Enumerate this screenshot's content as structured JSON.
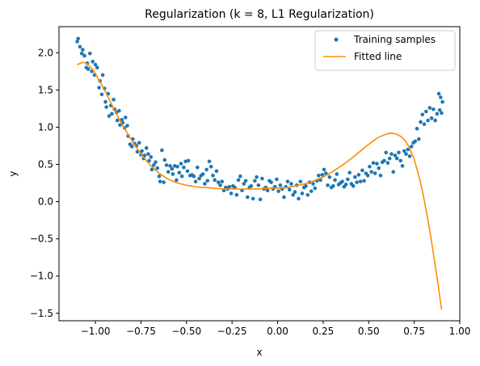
{
  "chart_data": {
    "type": "scatter",
    "title": "Regularization (k = 8, L1 Regularization)",
    "xlabel": "x",
    "ylabel": "y",
    "xlim": [
      -1.2,
      1.0
    ],
    "ylim": [
      -1.6,
      2.35
    ],
    "x_ticks": [
      -1.0,
      -0.75,
      -0.5,
      -0.25,
      0.0,
      0.25,
      0.5,
      0.75,
      1.0
    ],
    "x_tick_labels": [
      "−1.00",
      "−0.75",
      "−0.50",
      "−0.25",
      "0.00",
      "0.25",
      "0.50",
      "0.75",
      "1.00"
    ],
    "y_ticks": [
      -1.5,
      -1.0,
      -0.5,
      0.0,
      0.5,
      1.0,
      1.5,
      2.0
    ],
    "y_tick_labels": [
      "−1.5",
      "−1.0",
      "−0.5",
      "0.0",
      "0.5",
      "1.0",
      "1.5",
      "2.0"
    ],
    "grid": false,
    "legend": {
      "placement": "upper-right",
      "entries": [
        "Training samples",
        "Fitted line"
      ]
    },
    "colors": {
      "scatter": "#1f77b4",
      "line": "#ff8c00"
    },
    "series": [
      {
        "name": "Training samples",
        "kind": "scatter",
        "points": [
          [
            -1.1,
            2.15
          ],
          [
            -1.095,
            2.19
          ],
          [
            -1.085,
            2.08
          ],
          [
            -1.075,
            1.99
          ],
          [
            -1.07,
            2.04
          ],
          [
            -1.06,
            1.96
          ],
          [
            -1.05,
            1.8
          ],
          [
            -1.045,
            1.86
          ],
          [
            -1.04,
            1.78
          ],
          [
            -1.03,
            1.99
          ],
          [
            -1.02,
            1.75
          ],
          [
            -1.015,
            1.88
          ],
          [
            -1.005,
            1.7
          ],
          [
            -1.0,
            1.84
          ],
          [
            -0.99,
            1.8
          ],
          [
            -0.98,
            1.53
          ],
          [
            -0.975,
            1.62
          ],
          [
            -0.965,
            1.44
          ],
          [
            -0.96,
            1.7
          ],
          [
            -0.95,
            1.52
          ],
          [
            -0.945,
            1.34
          ],
          [
            -0.94,
            1.27
          ],
          [
            -0.93,
            1.45
          ],
          [
            -0.925,
            1.15
          ],
          [
            -0.915,
            1.29
          ],
          [
            -0.91,
            1.18
          ],
          [
            -0.9,
            1.37
          ],
          [
            -0.895,
            1.24
          ],
          [
            -0.885,
            1.2
          ],
          [
            -0.88,
            1.09
          ],
          [
            -0.87,
            1.22
          ],
          [
            -0.865,
            1.03
          ],
          [
            -0.855,
            1.1
          ],
          [
            -0.85,
            1.06
          ],
          [
            -0.84,
            0.99
          ],
          [
            -0.835,
            1.13
          ],
          [
            -0.825,
            1.02
          ],
          [
            -0.82,
            0.88
          ],
          [
            -0.81,
            0.77
          ],
          [
            -0.8,
            0.74
          ],
          [
            -0.795,
            0.84
          ],
          [
            -0.785,
            0.78
          ],
          [
            -0.775,
            0.75
          ],
          [
            -0.77,
            0.67
          ],
          [
            -0.76,
            0.79
          ],
          [
            -0.75,
            0.63
          ],
          [
            -0.745,
            0.68
          ],
          [
            -0.735,
            0.58
          ],
          [
            -0.73,
            0.62
          ],
          [
            -0.72,
            0.72
          ],
          [
            -0.71,
            0.64
          ],
          [
            -0.705,
            0.55
          ],
          [
            -0.695,
            0.6
          ],
          [
            -0.69,
            0.43
          ],
          [
            -0.68,
            0.49
          ],
          [
            -0.67,
            0.53
          ],
          [
            -0.66,
            0.45
          ],
          [
            -0.65,
            0.34
          ],
          [
            -0.645,
            0.27
          ],
          [
            -0.635,
            0.69
          ],
          [
            -0.625,
            0.26
          ],
          [
            -0.62,
            0.56
          ],
          [
            -0.61,
            0.49
          ],
          [
            -0.6,
            0.4
          ],
          [
            -0.59,
            0.48
          ],
          [
            -0.58,
            0.44
          ],
          [
            -0.575,
            0.37
          ],
          [
            -0.565,
            0.48
          ],
          [
            -0.555,
            0.29
          ],
          [
            -0.55,
            0.47
          ],
          [
            -0.54,
            0.39
          ],
          [
            -0.53,
            0.51
          ],
          [
            -0.525,
            0.34
          ],
          [
            -0.515,
            0.46
          ],
          [
            -0.505,
            0.54
          ],
          [
            -0.495,
            0.41
          ],
          [
            -0.49,
            0.55
          ],
          [
            -0.48,
            0.35
          ],
          [
            -0.47,
            0.36
          ],
          [
            -0.46,
            0.34
          ],
          [
            -0.45,
            0.27
          ],
          [
            -0.44,
            0.46
          ],
          [
            -0.43,
            0.31
          ],
          [
            -0.42,
            0.35
          ],
          [
            -0.41,
            0.37
          ],
          [
            -0.4,
            0.24
          ],
          [
            -0.39,
            0.43
          ],
          [
            -0.385,
            0.28
          ],
          [
            -0.375,
            0.54
          ],
          [
            -0.365,
            0.47
          ],
          [
            -0.355,
            0.35
          ],
          [
            -0.345,
            0.29
          ],
          [
            -0.335,
            0.41
          ],
          [
            -0.325,
            0.26
          ],
          [
            -0.315,
            0.22
          ],
          [
            -0.305,
            0.27
          ],
          [
            -0.295,
            0.15
          ],
          [
            -0.285,
            0.19
          ],
          [
            -0.275,
            0.17
          ],
          [
            -0.265,
            0.2
          ],
          [
            -0.255,
            0.11
          ],
          [
            -0.245,
            0.21
          ],
          [
            -0.235,
            0.19
          ],
          [
            -0.225,
            0.09
          ],
          [
            -0.215,
            0.29
          ],
          [
            -0.205,
            0.34
          ],
          [
            -0.195,
            0.15
          ],
          [
            -0.185,
            0.24
          ],
          [
            -0.175,
            0.28
          ],
          [
            -0.165,
            0.06
          ],
          [
            -0.155,
            0.19
          ],
          [
            -0.145,
            0.21
          ],
          [
            -0.135,
            0.04
          ],
          [
            -0.125,
            0.28
          ],
          [
            -0.115,
            0.33
          ],
          [
            -0.105,
            0.22
          ],
          [
            -0.095,
            0.03
          ],
          [
            -0.085,
            0.31
          ],
          [
            -0.075,
            0.17
          ],
          [
            -0.065,
            0.19
          ],
          [
            -0.055,
            0.15
          ],
          [
            -0.045,
            0.28
          ],
          [
            -0.035,
            0.26
          ],
          [
            -0.025,
            0.17
          ],
          [
            -0.015,
            0.2
          ],
          [
            -0.005,
            0.3
          ],
          [
            0.005,
            0.14
          ],
          [
            0.015,
            0.22
          ],
          [
            0.025,
            0.17
          ],
          [
            0.035,
            0.06
          ],
          [
            0.045,
            0.2
          ],
          [
            0.055,
            0.27
          ],
          [
            0.065,
            0.16
          ],
          [
            0.075,
            0.24
          ],
          [
            0.085,
            0.09
          ],
          [
            0.095,
            0.13
          ],
          [
            0.105,
            0.22
          ],
          [
            0.115,
            0.04
          ],
          [
            0.125,
            0.27
          ],
          [
            0.135,
            0.11
          ],
          [
            0.145,
            0.19
          ],
          [
            0.155,
            0.21
          ],
          [
            0.165,
            0.09
          ],
          [
            0.175,
            0.26
          ],
          [
            0.185,
            0.14
          ],
          [
            0.195,
            0.24
          ],
          [
            0.205,
            0.18
          ],
          [
            0.215,
            0.28
          ],
          [
            0.225,
            0.35
          ],
          [
            0.235,
            0.29
          ],
          [
            0.245,
            0.36
          ],
          [
            0.255,
            0.43
          ],
          [
            0.265,
            0.38
          ],
          [
            0.275,
            0.22
          ],
          [
            0.285,
            0.33
          ],
          [
            0.295,
            0.19
          ],
          [
            0.305,
            0.21
          ],
          [
            0.315,
            0.29
          ],
          [
            0.325,
            0.37
          ],
          [
            0.335,
            0.23
          ],
          [
            0.345,
            0.25
          ],
          [
            0.355,
            0.27
          ],
          [
            0.365,
            0.2
          ],
          [
            0.375,
            0.23
          ],
          [
            0.385,
            0.3
          ],
          [
            0.395,
            0.39
          ],
          [
            0.405,
            0.24
          ],
          [
            0.415,
            0.21
          ],
          [
            0.425,
            0.33
          ],
          [
            0.435,
            0.26
          ],
          [
            0.445,
            0.36
          ],
          [
            0.455,
            0.27
          ],
          [
            0.465,
            0.42
          ],
          [
            0.475,
            0.28
          ],
          [
            0.485,
            0.38
          ],
          [
            0.495,
            0.35
          ],
          [
            0.505,
            0.47
          ],
          [
            0.515,
            0.4
          ],
          [
            0.525,
            0.52
          ],
          [
            0.535,
            0.38
          ],
          [
            0.545,
            0.51
          ],
          [
            0.555,
            0.45
          ],
          [
            0.565,
            0.35
          ],
          [
            0.575,
            0.53
          ],
          [
            0.585,
            0.55
          ],
          [
            0.595,
            0.66
          ],
          [
            0.605,
            0.52
          ],
          [
            0.615,
            0.58
          ],
          [
            0.625,
            0.64
          ],
          [
            0.635,
            0.4
          ],
          [
            0.645,
            0.62
          ],
          [
            0.655,
            0.58
          ],
          [
            0.665,
            0.66
          ],
          [
            0.675,
            0.55
          ],
          [
            0.685,
            0.48
          ],
          [
            0.695,
            0.68
          ],
          [
            0.705,
            0.64
          ],
          [
            0.715,
            0.7
          ],
          [
            0.725,
            0.61
          ],
          [
            0.735,
            0.74
          ],
          [
            0.745,
            0.79
          ],
          [
            0.755,
            0.81
          ],
          [
            0.765,
            0.98
          ],
          [
            0.775,
            0.84
          ],
          [
            0.785,
            1.07
          ],
          [
            0.795,
            1.17
          ],
          [
            0.805,
            1.04
          ],
          [
            0.815,
            1.21
          ],
          [
            0.825,
            1.09
          ],
          [
            0.835,
            1.26
          ],
          [
            0.845,
            1.12
          ],
          [
            0.855,
            1.24
          ],
          [
            0.865,
            1.09
          ],
          [
            0.875,
            1.18
          ],
          [
            0.885,
            1.45
          ],
          [
            0.89,
            1.23
          ],
          [
            0.895,
            1.4
          ],
          [
            0.9,
            1.19
          ],
          [
            0.905,
            1.34
          ]
        ]
      },
      {
        "name": "Fitted line",
        "kind": "line",
        "points": [
          [
            -1.1,
            1.84
          ],
          [
            -1.07,
            1.87
          ],
          [
            -1.05,
            1.86
          ],
          [
            -1.02,
            1.79
          ],
          [
            -1.0,
            1.72
          ],
          [
            -0.95,
            1.5
          ],
          [
            -0.9,
            1.25
          ],
          [
            -0.85,
            1.02
          ],
          [
            -0.8,
            0.82
          ],
          [
            -0.75,
            0.64
          ],
          [
            -0.7,
            0.49
          ],
          [
            -0.65,
            0.38
          ],
          [
            -0.6,
            0.3
          ],
          [
            -0.55,
            0.25
          ],
          [
            -0.5,
            0.22
          ],
          [
            -0.45,
            0.2
          ],
          [
            -0.4,
            0.19
          ],
          [
            -0.35,
            0.18
          ],
          [
            -0.3,
            0.17
          ],
          [
            -0.25,
            0.17
          ],
          [
            -0.2,
            0.17
          ],
          [
            -0.15,
            0.17
          ],
          [
            -0.1,
            0.17
          ],
          [
            -0.05,
            0.18
          ],
          [
            0.0,
            0.18
          ],
          [
            0.05,
            0.19
          ],
          [
            0.1,
            0.21
          ],
          [
            0.15,
            0.24
          ],
          [
            0.2,
            0.28
          ],
          [
            0.25,
            0.33
          ],
          [
            0.3,
            0.4
          ],
          [
            0.35,
            0.48
          ],
          [
            0.4,
            0.57
          ],
          [
            0.45,
            0.67
          ],
          [
            0.5,
            0.77
          ],
          [
            0.55,
            0.86
          ],
          [
            0.6,
            0.91
          ],
          [
            0.62,
            0.92
          ],
          [
            0.65,
            0.91
          ],
          [
            0.68,
            0.87
          ],
          [
            0.7,
            0.82
          ],
          [
            0.72,
            0.74
          ],
          [
            0.75,
            0.57
          ],
          [
            0.78,
            0.3
          ],
          [
            0.8,
            0.08
          ],
          [
            0.82,
            -0.18
          ],
          [
            0.84,
            -0.46
          ],
          [
            0.86,
            -0.78
          ],
          [
            0.88,
            -1.1
          ],
          [
            0.9,
            -1.45
          ]
        ]
      }
    ]
  }
}
